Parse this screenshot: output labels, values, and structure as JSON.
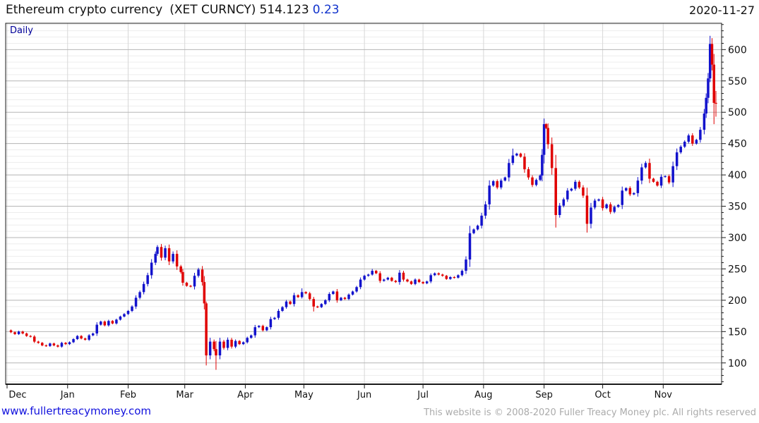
{
  "header": {
    "instrument": "Ethereum crypto currency",
    "ticker": "(XET CURNCY)",
    "last_price": "514.123",
    "change": "0.23",
    "date": "2020-11-27"
  },
  "chart": {
    "frequency_label": "Daily"
  },
  "footer": {
    "site_link": "www.fullertreacymoney.com",
    "copyright": "This website is © 2008-2020 Fuller Treacy Money plc. All rights reserved"
  },
  "colors": {
    "up": "#1212cc",
    "down": "#e00000",
    "grid_major": "#b5b5b5",
    "grid_minor": "#ededed",
    "grid_vertical": "#d8d8d8",
    "frame": "#1a1a1a",
    "change_text": "#1133cc",
    "daily_text": "#000099",
    "link_text": "#1111dd",
    "copyright_text": "#ababab"
  },
  "chart_data": {
    "type": "candlestick",
    "title": "Ethereum crypto currency (XET CURNCY)",
    "frequency": "Daily",
    "start_date": "2019-12-01",
    "end_date": "2020-11-27",
    "last_close": 514.123,
    "change": 0.23,
    "y_axis": {
      "min": 66,
      "max": 642,
      "major_tick_step": 50,
      "minor_tick_step": 10,
      "tick_labels": [
        "600",
        "550",
        "500",
        "450",
        "400",
        "350",
        "300",
        "250",
        "200",
        "150",
        "100"
      ],
      "side": "right",
      "grid": true
    },
    "x_axis": {
      "tick_labels": [
        "Dec",
        "Jan",
        "Feb",
        "Mar",
        "Apr",
        "May",
        "Jun",
        "Jul",
        "Aug",
        "Sep",
        "Oct",
        "Nov"
      ],
      "month_day_offsets": [
        0,
        31,
        62,
        91,
        122,
        152,
        183,
        213,
        244,
        275,
        305,
        336
      ],
      "days_total": 363
    },
    "candles_format": [
      "day_offset",
      "close",
      "high_optional",
      "low_optional"
    ],
    "candles": [
      [
        0,
        152
      ],
      [
        2,
        149
      ],
      [
        4,
        146
      ],
      [
        6,
        150
      ],
      [
        8,
        147
      ],
      [
        10,
        143
      ],
      [
        12,
        142
      ],
      [
        14,
        134
      ],
      [
        16,
        132
      ],
      [
        18,
        128
      ],
      [
        20,
        127
      ],
      [
        22,
        131
      ],
      [
        24,
        128
      ],
      [
        26,
        126
      ],
      [
        28,
        132
      ],
      [
        30,
        130
      ],
      [
        32,
        133
      ],
      [
        34,
        138
      ],
      [
        36,
        143
      ],
      [
        38,
        139
      ],
      [
        40,
        137
      ],
      [
        42,
        144
      ],
      [
        44,
        147
      ],
      [
        46,
        161
      ],
      [
        48,
        166
      ],
      [
        50,
        160
      ],
      [
        52,
        167
      ],
      [
        54,
        163
      ],
      [
        56,
        169
      ],
      [
        58,
        174
      ],
      [
        60,
        178
      ],
      [
        62,
        183
      ],
      [
        64,
        190
      ],
      [
        66,
        204
      ],
      [
        68,
        213
      ],
      [
        70,
        226
      ],
      [
        72,
        240
      ],
      [
        74,
        260
      ],
      [
        76,
        274
      ],
      [
        77,
        285,
        288
      ],
      [
        79,
        268
      ],
      [
        81,
        283
      ],
      [
        83,
        262
      ],
      [
        85,
        274,
        278
      ],
      [
        87,
        254
      ],
      [
        89,
        245
      ],
      [
        90,
        228
      ],
      [
        92,
        223
      ],
      [
        94,
        222
      ],
      [
        96,
        239
      ],
      [
        98,
        249
      ],
      [
        100,
        229
      ],
      [
        101,
        195
      ],
      [
        102,
        112,
        198,
        96
      ],
      [
        104,
        134
      ],
      [
        106,
        122
      ],
      [
        107,
        112,
        135,
        89
      ],
      [
        109,
        134
      ],
      [
        111,
        124
      ],
      [
        113,
        137
      ],
      [
        115,
        126
      ],
      [
        117,
        135
      ],
      [
        119,
        130
      ],
      [
        121,
        133
      ],
      [
        123,
        140
      ],
      [
        125,
        144
      ],
      [
        127,
        157
      ],
      [
        129,
        159
      ],
      [
        131,
        152
      ],
      [
        133,
        157
      ],
      [
        135,
        170
      ],
      [
        137,
        172
      ],
      [
        139,
        183
      ],
      [
        141,
        189
      ],
      [
        143,
        198
      ],
      [
        145,
        194
      ],
      [
        147,
        208
      ],
      [
        149,
        205
      ],
      [
        151,
        213,
        219
      ],
      [
        153,
        211
      ],
      [
        155,
        202
      ],
      [
        157,
        190,
        null,
        182
      ],
      [
        159,
        189
      ],
      [
        161,
        194
      ],
      [
        163,
        200
      ],
      [
        165,
        210
      ],
      [
        167,
        214
      ],
      [
        169,
        200
      ],
      [
        171,
        204
      ],
      [
        173,
        202
      ],
      [
        175,
        209
      ],
      [
        177,
        214
      ],
      [
        179,
        221
      ],
      [
        181,
        233
      ],
      [
        183,
        239
      ],
      [
        185,
        241
      ],
      [
        187,
        247,
        250
      ],
      [
        189,
        243
      ],
      [
        191,
        231
      ],
      [
        193,
        233
      ],
      [
        195,
        236
      ],
      [
        197,
        231
      ],
      [
        199,
        229
      ],
      [
        201,
        244
      ],
      [
        203,
        233
      ],
      [
        205,
        230
      ],
      [
        207,
        226
      ],
      [
        209,
        233
      ],
      [
        211,
        229
      ],
      [
        213,
        227
      ],
      [
        215,
        230
      ],
      [
        217,
        240
      ],
      [
        219,
        243
      ],
      [
        221,
        241
      ],
      [
        223,
        239
      ],
      [
        225,
        234
      ],
      [
        227,
        237
      ],
      [
        229,
        236
      ],
      [
        231,
        240
      ],
      [
        233,
        247
      ],
      [
        235,
        265
      ],
      [
        237,
        307
      ],
      [
        239,
        313
      ],
      [
        241,
        319
      ],
      [
        243,
        335
      ],
      [
        245,
        353
      ],
      [
        247,
        383
      ],
      [
        249,
        390
      ],
      [
        251,
        380
      ],
      [
        253,
        391
      ],
      [
        255,
        396
      ],
      [
        257,
        419
      ],
      [
        259,
        431,
        442
      ],
      [
        261,
        434
      ],
      [
        263,
        429
      ],
      [
        265,
        409
      ],
      [
        267,
        396
      ],
      [
        269,
        384
      ],
      [
        271,
        392
      ],
      [
        273,
        399
      ],
      [
        274,
        432
      ],
      [
        275,
        481,
        490
      ],
      [
        276,
        475
      ],
      [
        277,
        449
      ],
      [
        279,
        411
      ],
      [
        281,
        336,
        null,
        316
      ],
      [
        283,
        351
      ],
      [
        285,
        361
      ],
      [
        287,
        375
      ],
      [
        289,
        378
      ],
      [
        291,
        389
      ],
      [
        293,
        380
      ],
      [
        295,
        367
      ],
      [
        297,
        322,
        null,
        308
      ],
      [
        299,
        348
      ],
      [
        301,
        359
      ],
      [
        303,
        361
      ],
      [
        305,
        347
      ],
      [
        307,
        353
      ],
      [
        309,
        341
      ],
      [
        311,
        349
      ],
      [
        313,
        352
      ],
      [
        315,
        375
      ],
      [
        317,
        379
      ],
      [
        319,
        369
      ],
      [
        321,
        371
      ],
      [
        323,
        391
      ],
      [
        325,
        412
      ],
      [
        327,
        419,
        422
      ],
      [
        329,
        394
      ],
      [
        331,
        389
      ],
      [
        333,
        383
      ],
      [
        335,
        397
      ],
      [
        337,
        398
      ],
      [
        339,
        388
      ],
      [
        341,
        414
      ],
      [
        343,
        436
      ],
      [
        345,
        445
      ],
      [
        347,
        453
      ],
      [
        349,
        463
      ],
      [
        351,
        450
      ],
      [
        353,
        456
      ],
      [
        355,
        472
      ],
      [
        357,
        498
      ],
      [
        358,
        523
      ],
      [
        359,
        554
      ],
      [
        360,
        609,
        622,
        548
      ],
      [
        361,
        576
      ],
      [
        362,
        515,
        null,
        481
      ],
      [
        363,
        514,
        534,
        493
      ]
    ]
  }
}
